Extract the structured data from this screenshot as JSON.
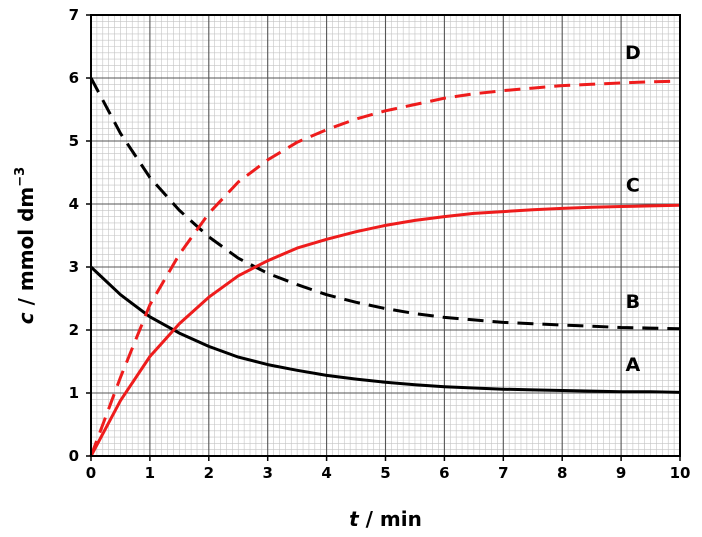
{
  "chart_data": {
    "type": "line",
    "title": "",
    "xlabel": {
      "var": "t",
      "rest": " / min"
    },
    "ylabel": {
      "var": "c",
      "rest": " / mmol dm",
      "sup": "−3"
    },
    "xlim": [
      0,
      10
    ],
    "ylim": [
      0,
      7
    ],
    "x_ticks": [
      "0",
      "1",
      "2",
      "3",
      "4",
      "5",
      "6",
      "7",
      "8",
      "9",
      "10"
    ],
    "y_ticks": [
      "0",
      "1",
      "2",
      "3",
      "4",
      "5",
      "6",
      "7"
    ],
    "grid": "major and minor (0.1 units)",
    "series": [
      {
        "name": "A",
        "color": "#000000",
        "style": "solid",
        "label_pos": [
          9.2,
          1.35
        ],
        "x": [
          0,
          0.5,
          1,
          1.5,
          2,
          2.5,
          3,
          3.5,
          4,
          4.5,
          5,
          5.5,
          6,
          6.5,
          7,
          7.5,
          8,
          8.5,
          9,
          9.5,
          10
        ],
        "y": [
          3.0,
          2.56,
          2.21,
          1.95,
          1.74,
          1.57,
          1.45,
          1.36,
          1.28,
          1.22,
          1.17,
          1.13,
          1.1,
          1.08,
          1.06,
          1.05,
          1.04,
          1.03,
          1.02,
          1.02,
          1.01
        ]
      },
      {
        "name": "B",
        "color": "#000000",
        "style": "dashed",
        "label_pos": [
          9.2,
          2.35
        ],
        "x": [
          0,
          0.5,
          1,
          1.5,
          2,
          2.5,
          3,
          3.5,
          4,
          4.5,
          5,
          5.5,
          6,
          6.5,
          7,
          7.5,
          8,
          8.5,
          9,
          9.5,
          10
        ],
        "y": [
          6.0,
          5.12,
          4.42,
          3.9,
          3.48,
          3.14,
          2.9,
          2.72,
          2.56,
          2.44,
          2.34,
          2.26,
          2.2,
          2.16,
          2.12,
          2.1,
          2.08,
          2.06,
          2.04,
          2.03,
          2.02
        ]
      },
      {
        "name": "C",
        "color": "#ee1c1c",
        "style": "solid",
        "label_pos": [
          9.2,
          4.2
        ],
        "x": [
          0,
          0.5,
          1,
          1.5,
          2,
          2.5,
          3,
          3.5,
          4,
          4.5,
          5,
          5.5,
          6,
          6.5,
          7,
          7.5,
          8,
          8.5,
          9,
          9.5,
          10
        ],
        "y": [
          0.0,
          0.88,
          1.58,
          2.1,
          2.52,
          2.86,
          3.1,
          3.3,
          3.44,
          3.56,
          3.66,
          3.74,
          3.8,
          3.85,
          3.88,
          3.91,
          3.93,
          3.95,
          3.96,
          3.97,
          3.98
        ]
      },
      {
        "name": "D",
        "color": "#ee1c1c",
        "style": "dashed",
        "label_pos": [
          9.2,
          6.3
        ],
        "x": [
          0,
          0.5,
          1,
          1.5,
          2,
          2.5,
          3,
          3.5,
          4,
          4.5,
          5,
          5.5,
          6,
          6.5,
          7,
          7.5,
          8,
          8.5,
          9,
          9.5,
          10
        ],
        "y": [
          0.0,
          1.25,
          2.4,
          3.2,
          3.85,
          4.35,
          4.7,
          4.98,
          5.18,
          5.35,
          5.48,
          5.58,
          5.68,
          5.75,
          5.8,
          5.84,
          5.88,
          5.9,
          5.92,
          5.94,
          5.95
        ]
      }
    ]
  }
}
